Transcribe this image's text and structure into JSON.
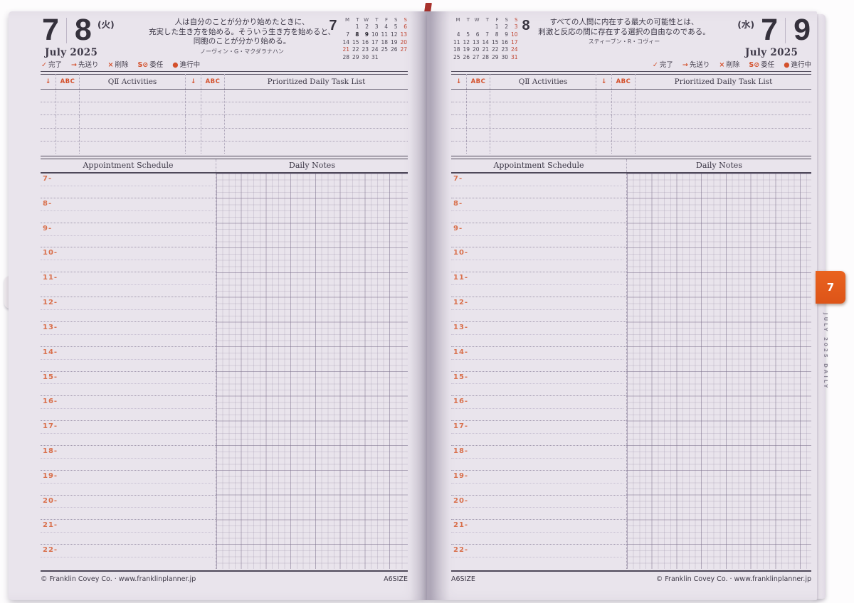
{
  "colors": {
    "accent_orange": "#e05a1e",
    "calendar_red": "#c04330",
    "ink": "#3d3847",
    "paper": "#e9e4ec"
  },
  "legend": [
    {
      "t": "✓",
      "c": "sym"
    },
    {
      "t": "完了",
      "c": "lbl"
    },
    {
      "t": "→",
      "c": "sym"
    },
    {
      "t": "先送り",
      "c": "lbl"
    },
    {
      "t": "×",
      "c": "sym"
    },
    {
      "t": "削除",
      "c": "lbl"
    },
    {
      "t": "S⊘",
      "c": "sym"
    },
    {
      "t": "委任",
      "c": "lbl"
    },
    {
      "t": "●",
      "c": "sym"
    },
    {
      "t": "進行中",
      "c": "lbl"
    }
  ],
  "table": {
    "arrow": "↓",
    "abc": "ABC",
    "activities": "QⅡ Activities",
    "tasks": "Prioritized Daily Task List"
  },
  "sections": {
    "appointment": "Appointment Schedule",
    "notes": "Daily Notes"
  },
  "hours": [
    "7-",
    "8-",
    "9-",
    "10-",
    "11-",
    "12-",
    "13-",
    "14-",
    "15-",
    "16-",
    "17-",
    "18-",
    "19-",
    "20-",
    "21-",
    "22-"
  ],
  "footer": {
    "copyright": "© Franklin Covey Co. · www.franklinplanner.jp",
    "size": "A6SIZE"
  },
  "tab": {
    "number": "7",
    "side_text": "JULY 2025 DAILY"
  },
  "left_page": {
    "month_num": "7",
    "day_num": "8",
    "weekday": "(火)",
    "month_label": "July 2025",
    "quote_lines": [
      "人は自分のことが分かり始めたときに、",
      "充実した生き方を始める。そういう生き方を始めると、",
      "同胞のことが分かり始める。"
    ],
    "quote_author": "ノーヴィン・G・マクダラナハン",
    "mini_cal": {
      "month": "7",
      "dow": [
        {
          "t": "M"
        },
        {
          "t": "T"
        },
        {
          "t": "W"
        },
        {
          "t": "T"
        },
        {
          "t": "F"
        },
        {
          "t": "S"
        },
        {
          "t": "S",
          "c": "red"
        }
      ],
      "cells": [
        {
          "t": ""
        },
        {
          "t": "1"
        },
        {
          "t": "2"
        },
        {
          "t": "3"
        },
        {
          "t": "4"
        },
        {
          "t": "5"
        },
        {
          "t": "6",
          "c": "red"
        },
        {
          "t": "7"
        },
        {
          "t": "8",
          "c": "bold"
        },
        {
          "t": "9",
          "c": "bold"
        },
        {
          "t": "10"
        },
        {
          "t": "11"
        },
        {
          "t": "12"
        },
        {
          "t": "13",
          "c": "red"
        },
        {
          "t": "14"
        },
        {
          "t": "15"
        },
        {
          "t": "16"
        },
        {
          "t": "17"
        },
        {
          "t": "18"
        },
        {
          "t": "19"
        },
        {
          "t": "20",
          "c": "red"
        },
        {
          "t": "21",
          "c": "red"
        },
        {
          "t": "22"
        },
        {
          "t": "23"
        },
        {
          "t": "24"
        },
        {
          "t": "25"
        },
        {
          "t": "26"
        },
        {
          "t": "27",
          "c": "red"
        },
        {
          "t": "28"
        },
        {
          "t": "29"
        },
        {
          "t": "30"
        },
        {
          "t": "31"
        },
        {
          "t": ""
        },
        {
          "t": ""
        },
        {
          "t": ""
        }
      ]
    }
  },
  "right_page": {
    "month_num": "7",
    "day_num": "9",
    "weekday": "(水)",
    "month_label": "July 2025",
    "quote_lines": [
      "すべての人間に内在する最大の可能性とは、",
      "刺激と反応の間に存在する選択の自由なのである。"
    ],
    "quote_author": "スティーブン・R・コヴィー",
    "mini_cal": {
      "month": "8",
      "dow": [
        {
          "t": "M"
        },
        {
          "t": "T"
        },
        {
          "t": "W"
        },
        {
          "t": "T"
        },
        {
          "t": "F"
        },
        {
          "t": "S"
        },
        {
          "t": "S",
          "c": "red"
        }
      ],
      "cells": [
        {
          "t": ""
        },
        {
          "t": ""
        },
        {
          "t": ""
        },
        {
          "t": ""
        },
        {
          "t": "1"
        },
        {
          "t": "2"
        },
        {
          "t": "3",
          "c": "red"
        },
        {
          "t": "4"
        },
        {
          "t": "5"
        },
        {
          "t": "6"
        },
        {
          "t": "7"
        },
        {
          "t": "8"
        },
        {
          "t": "9"
        },
        {
          "t": "10",
          "c": "red"
        },
        {
          "t": "11"
        },
        {
          "t": "12"
        },
        {
          "t": "13"
        },
        {
          "t": "14"
        },
        {
          "t": "15"
        },
        {
          "t": "16"
        },
        {
          "t": "17",
          "c": "red"
        },
        {
          "t": "18"
        },
        {
          "t": "19"
        },
        {
          "t": "20"
        },
        {
          "t": "21"
        },
        {
          "t": "22"
        },
        {
          "t": "23"
        },
        {
          "t": "24",
          "c": "red"
        },
        {
          "t": "25"
        },
        {
          "t": "26"
        },
        {
          "t": "27"
        },
        {
          "t": "28"
        },
        {
          "t": "29"
        },
        {
          "t": "30"
        },
        {
          "t": "31",
          "c": "red"
        }
      ]
    }
  }
}
